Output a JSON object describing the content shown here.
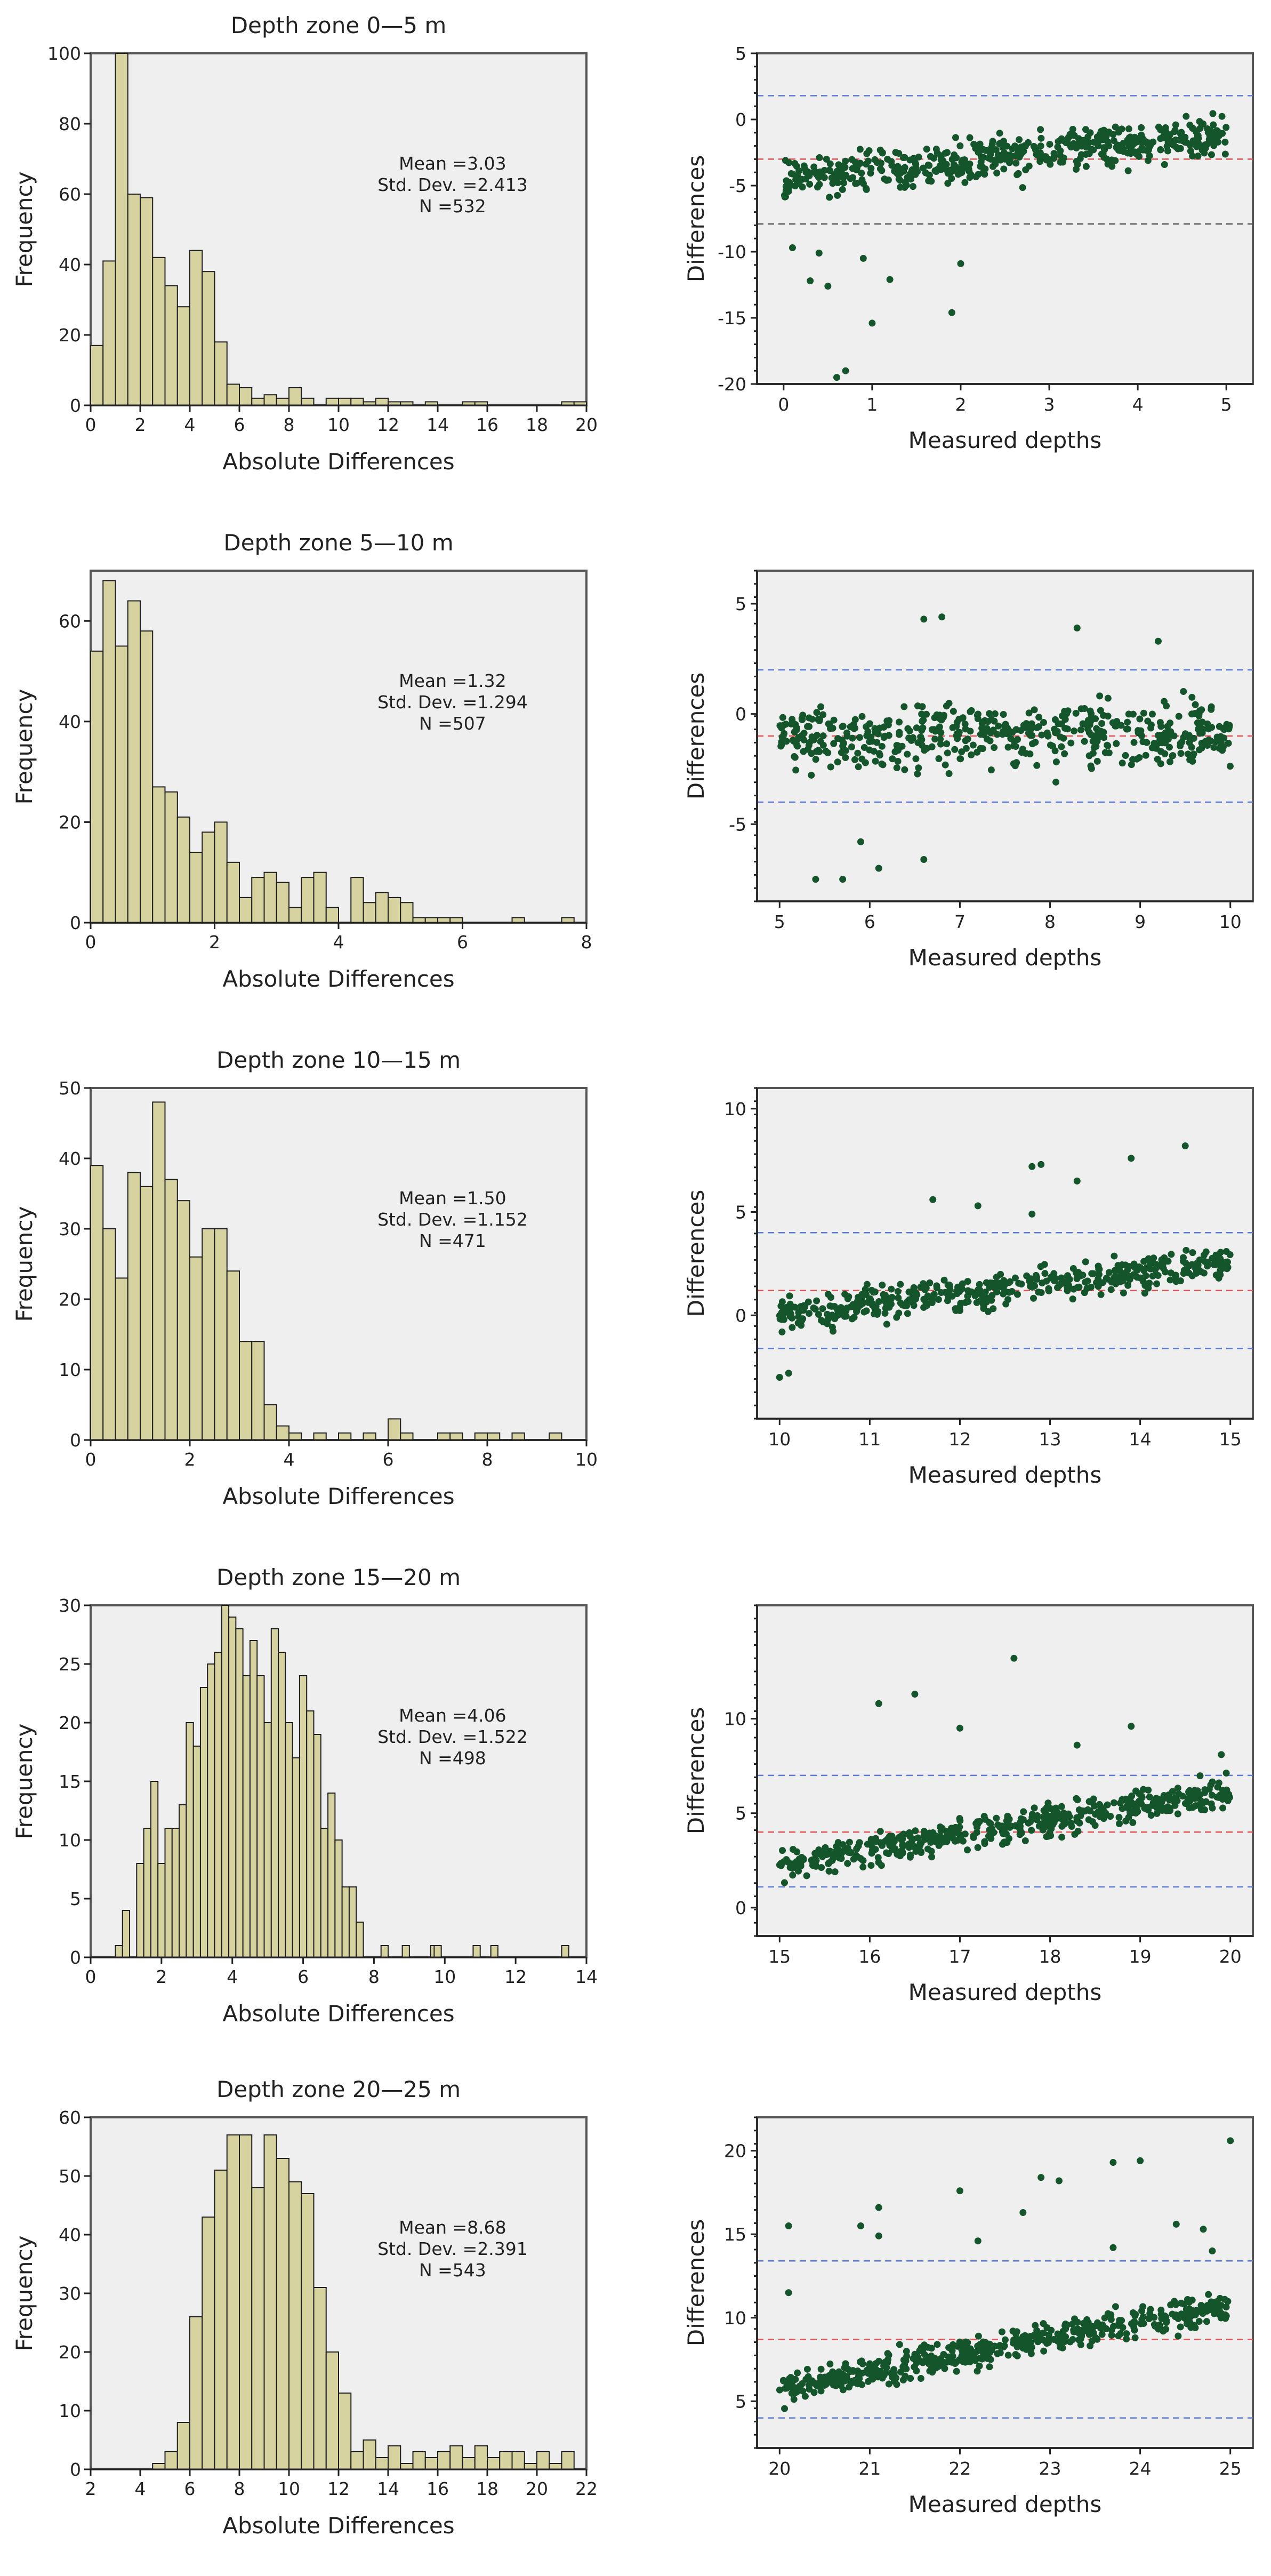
{
  "colors": {
    "bar_fill": "#d6d3a1",
    "bar_edge": "#1f1f1f",
    "plot_bg": "#efefef",
    "point": "#15552b",
    "mean_line": "#e05050",
    "limit_line": "#5a7bd6",
    "lower_limit_alt": "#555555"
  },
  "chart_data": [
    {
      "type": "bar",
      "title": "Depth zone 0—5 m",
      "xlabel": "Absolute Differences",
      "ylabel": "Frequency",
      "xlim": [
        0,
        20
      ],
      "ylim": [
        0,
        100
      ],
      "xticks": [
        "0",
        "2",
        "4",
        "6",
        "8",
        "10",
        "12",
        "14",
        "16",
        "18",
        "20"
      ],
      "yticks": [
        "0",
        "20",
        "40",
        "60",
        "80",
        "100"
      ],
      "bin_start": 0,
      "bin_width": 0.5,
      "values": [
        17,
        41,
        100,
        60,
        59,
        42,
        34,
        28,
        44,
        38,
        18,
        6,
        5,
        2,
        3,
        2,
        5,
        2,
        0,
        2,
        2,
        2,
        1,
        2,
        1,
        1,
        0,
        1,
        0,
        0,
        1,
        1,
        0,
        0,
        0,
        0,
        0,
        0,
        1,
        1
      ],
      "stats": {
        "mean": "Mean =3.03",
        "sd": "Std. Dev. =2.413",
        "n": "N =532"
      }
    },
    {
      "type": "scatter",
      "xlabel": "Measured depths",
      "ylabel": "Differences",
      "xlim": [
        -0.3,
        5.3
      ],
      "ylim": [
        -20,
        5
      ],
      "xticks": [
        "0",
        "1",
        "2",
        "3",
        "4",
        "5"
      ],
      "yticks": [
        "5",
        "0",
        "-5",
        "-10",
        "-15",
        "-20"
      ],
      "ref_lines": [
        {
          "name": "upper-limit",
          "value": 1.8,
          "color": "#5a7bd6"
        },
        {
          "name": "mean",
          "value": -3.0,
          "color": "#e05050"
        },
        {
          "name": "lower-limit",
          "value": -7.9,
          "color": "#555555"
        }
      ],
      "points_summary": {
        "n": 532,
        "x_range": [
          0,
          5
        ],
        "trend_start": -4.5,
        "trend_end": -1.2,
        "spread": 1.6,
        "outliers": [
          [
            0.1,
            -9.7
          ],
          [
            0.5,
            -12.6
          ],
          [
            0.7,
            -19
          ],
          [
            0.6,
            -19.5
          ],
          [
            1.0,
            -15.4
          ],
          [
            1.2,
            -12.1
          ],
          [
            1.9,
            -14.6
          ],
          [
            0.9,
            -10.5
          ],
          [
            0.3,
            -12.2
          ],
          [
            0.4,
            -10.1
          ],
          [
            2.0,
            -10.9
          ]
        ]
      }
    },
    {
      "type": "bar",
      "title": "Depth zone 5—10 m",
      "xlabel": "Absolute Differences",
      "ylabel": "Frequency",
      "xlim": [
        0,
        8
      ],
      "ylim": [
        0,
        70
      ],
      "xticks": [
        "0",
        "2",
        "4",
        "6",
        "8"
      ],
      "yticks": [
        "0",
        "20",
        "40",
        "60"
      ],
      "bin_start": 0,
      "bin_width": 0.2,
      "values": [
        54,
        68,
        55,
        64,
        58,
        27,
        26,
        21,
        14,
        18,
        20,
        12,
        5,
        9,
        10,
        8,
        3,
        9,
        10,
        3,
        0,
        9,
        4,
        6,
        5,
        4,
        1,
        1,
        1,
        1,
        0,
        0,
        0,
        0,
        1,
        0,
        0,
        0,
        1,
        0
      ],
      "stats": {
        "mean": "Mean =1.32",
        "sd": "Std. Dev. =1.294",
        "n": "N =507"
      }
    },
    {
      "type": "scatter",
      "xlabel": "Measured depths",
      "ylabel": "Differences",
      "xlim": [
        4.75,
        10.25
      ],
      "ylim": [
        -8.5,
        6.5
      ],
      "xticks": [
        "5",
        "6",
        "7",
        "8",
        "9",
        "10"
      ],
      "yticks": [
        "5",
        "0",
        "-5"
      ],
      "ref_lines": [
        {
          "name": "upper-limit",
          "value": 2.0,
          "color": "#5a7bd6"
        },
        {
          "name": "mean",
          "value": -1.0,
          "color": "#e05050"
        },
        {
          "name": "lower-limit",
          "value": -4.0,
          "color": "#5a7bd6"
        }
      ],
      "points_summary": {
        "n": 507,
        "x_range": [
          5,
          10
        ],
        "trend_start": -1.0,
        "trend_end": -0.8,
        "spread": 1.4,
        "outliers": [
          [
            6.6,
            4.3
          ],
          [
            6.8,
            4.4
          ],
          [
            8.3,
            3.9
          ],
          [
            9.2,
            3.3
          ],
          [
            5.4,
            -7.5
          ],
          [
            5.7,
            -7.5
          ],
          [
            6.1,
            -7.0
          ],
          [
            6.6,
            -6.6
          ],
          [
            5.9,
            -5.8
          ]
        ]
      }
    },
    {
      "type": "bar",
      "title": "Depth zone 10—15 m",
      "xlabel": "Absolute Differences",
      "ylabel": "Frequency",
      "xlim": [
        0,
        10
      ],
      "ylim": [
        0,
        50
      ],
      "xticks": [
        "0",
        "2",
        "4",
        "6",
        "8",
        "10"
      ],
      "yticks": [
        "0",
        "10",
        "20",
        "30",
        "40",
        "50"
      ],
      "bin_start": 0,
      "bin_width": 0.25,
      "values": [
        39,
        30,
        23,
        38,
        36,
        48,
        37,
        34,
        26,
        30,
        30,
        24,
        14,
        14,
        5,
        2,
        1,
        0,
        1,
        0,
        1,
        0,
        1,
        0,
        3,
        1,
        0,
        0,
        1,
        1,
        0,
        1,
        1,
        0,
        1,
        0,
        0,
        1,
        0,
        0
      ],
      "stats": {
        "mean": "Mean =1.50",
        "sd": "Std. Dev. =1.152",
        "n": "N =471"
      }
    },
    {
      "type": "scatter",
      "xlabel": "Measured depths",
      "ylabel": "Differences",
      "xlim": [
        9.75,
        15.25
      ],
      "ylim": [
        -5,
        11
      ],
      "xticks": [
        "10",
        "11",
        "12",
        "13",
        "14",
        "15"
      ],
      "yticks": [
        "10",
        "5",
        "0"
      ],
      "ref_lines": [
        {
          "name": "upper-limit",
          "value": 4.0,
          "color": "#5a7bd6"
        },
        {
          "name": "mean",
          "value": 1.2,
          "color": "#e05050"
        },
        {
          "name": "lower-limit",
          "value": -1.6,
          "color": "#5a7bd6"
        }
      ],
      "points_summary": {
        "n": 471,
        "x_range": [
          10,
          15
        ],
        "trend_start": 0.0,
        "trend_end": 2.6,
        "spread": 0.8,
        "outliers": [
          [
            12.8,
            7.2
          ],
          [
            12.9,
            7.3
          ],
          [
            13.3,
            6.5
          ],
          [
            14.5,
            8.2
          ],
          [
            13.9,
            7.6
          ],
          [
            11.7,
            5.6
          ],
          [
            12.2,
            5.3
          ],
          [
            12.8,
            4.9
          ],
          [
            10.0,
            -3.0
          ],
          [
            10.1,
            -2.8
          ]
        ]
      }
    },
    {
      "type": "bar",
      "title": "Depth zone 15—20 m",
      "xlabel": "Absolute Differences",
      "ylabel": "Frequency",
      "xlim": [
        0,
        14
      ],
      "ylim": [
        0,
        30
      ],
      "xticks": [
        "0",
        "2",
        "4",
        "6",
        "8",
        "10",
        "12",
        "14"
      ],
      "yticks": [
        "0",
        "5",
        "10",
        "15",
        "20",
        "25",
        "30"
      ],
      "bin_start": 0.7,
      "bin_width": 0.2,
      "values": [
        1,
        4,
        0,
        8,
        11,
        15,
        8,
        11,
        11,
        13,
        20,
        18,
        23,
        25,
        26,
        30,
        29,
        28,
        24,
        27,
        24,
        20,
        28,
        26,
        20,
        17,
        24,
        21,
        19,
        11,
        14,
        10,
        6,
        6,
        3,
        0,
        0,
        0,
        0,
        0,
        0,
        0,
        0,
        0,
        0,
        0,
        0,
        0,
        0,
        0,
        0,
        0,
        0,
        0,
        0,
        0,
        0,
        0,
        0,
        0,
        0,
        0,
        0,
        0,
        0
      ],
      "extra_values": [
        [
          8.2,
          1
        ],
        [
          8.8,
          1
        ],
        [
          9.6,
          1
        ],
        [
          9.7,
          1
        ],
        [
          10.8,
          1
        ],
        [
          11.3,
          1
        ],
        [
          13.3,
          1
        ]
      ],
      "stats": {
        "mean": "Mean =4.06",
        "sd": "Std. Dev. =1.522",
        "n": "N =498"
      }
    },
    {
      "type": "scatter",
      "xlabel": "Measured depths",
      "ylabel": "Differences",
      "xlim": [
        14.75,
        20.25
      ],
      "ylim": [
        -1.5,
        16
      ],
      "xticks": [
        "15",
        "16",
        "17",
        "18",
        "19",
        "20"
      ],
      "yticks": [
        "10",
        "5",
        "0"
      ],
      "ref_lines": [
        {
          "name": "upper-limit",
          "value": 7.0,
          "color": "#5a7bd6"
        },
        {
          "name": "mean",
          "value": 4.0,
          "color": "#e05050"
        },
        {
          "name": "lower-limit",
          "value": 1.1,
          "color": "#5a7bd6"
        }
      ],
      "points_summary": {
        "n": 498,
        "x_range": [
          15,
          20
        ],
        "trend_start": 2.3,
        "trend_end": 6.2,
        "spread": 0.8,
        "outliers": [
          [
            16.1,
            10.8
          ],
          [
            16.5,
            11.3
          ],
          [
            17.0,
            9.5
          ],
          [
            17.6,
            13.2
          ],
          [
            18.3,
            8.6
          ],
          [
            18.9,
            9.6
          ],
          [
            19.9,
            8.1
          ]
        ]
      }
    },
    {
      "type": "bar",
      "title": "Depth zone 20—25 m",
      "xlabel": "Absolute Differences",
      "ylabel": "Frequency",
      "xlim": [
        2,
        22
      ],
      "ylim": [
        0,
        60
      ],
      "xticks": [
        "2",
        "4",
        "6",
        "8",
        "10",
        "12",
        "14",
        "16",
        "18",
        "20",
        "22"
      ],
      "yticks": [
        "0",
        "10",
        "20",
        "30",
        "40",
        "50",
        "60"
      ],
      "bin_start": 3,
      "bin_width": 0.5,
      "values": [
        0,
        0,
        0,
        1,
        3,
        8,
        26,
        43,
        51,
        57,
        57,
        48,
        57,
        53,
        49,
        47,
        31,
        20,
        13,
        3,
        5,
        2,
        4,
        1,
        3,
        2,
        3,
        4,
        2,
        4,
        2,
        3,
        3,
        1,
        3,
        1,
        3,
        0,
        1,
        0
      ],
      "stats": {
        "mean": "Mean =8.68",
        "sd": "Std. Dev. =2.391",
        "n": "N =543"
      }
    },
    {
      "type": "scatter",
      "xlabel": "Measured depths",
      "ylabel": "Differences",
      "xlim": [
        19.75,
        25.25
      ],
      "ylim": [
        2.2,
        22
      ],
      "xticks": [
        "20",
        "21",
        "22",
        "23",
        "24",
        "25"
      ],
      "yticks": [
        "20",
        "15",
        "10",
        "5"
      ],
      "ref_lines": [
        {
          "name": "upper-limit",
          "value": 13.4,
          "color": "#5a7bd6"
        },
        {
          "name": "mean",
          "value": 8.7,
          "color": "#e05050"
        },
        {
          "name": "lower-limit",
          "value": 4.0,
          "color": "#5a7bd6"
        }
      ],
      "points_summary": {
        "n": 543,
        "x_range": [
          20,
          25
        ],
        "trend_start": 5.8,
        "trend_end": 10.8,
        "spread": 0.9,
        "outliers": [
          [
            20.1,
            15.5
          ],
          [
            20.1,
            11.5
          ],
          [
            20.9,
            15.5
          ],
          [
            21.1,
            16.6
          ],
          [
            21.1,
            14.9
          ],
          [
            22.0,
            17.6
          ],
          [
            22.2,
            14.6
          ],
          [
            22.7,
            16.3
          ],
          [
            22.9,
            18.4
          ],
          [
            23.1,
            18.2
          ],
          [
            23.7,
            19.3
          ],
          [
            24.0,
            19.4
          ],
          [
            24.4,
            15.6
          ],
          [
            24.8,
            14.0
          ],
          [
            25.0,
            20.6
          ],
          [
            23.7,
            14.2
          ],
          [
            24.7,
            15.3
          ]
        ]
      }
    }
  ]
}
